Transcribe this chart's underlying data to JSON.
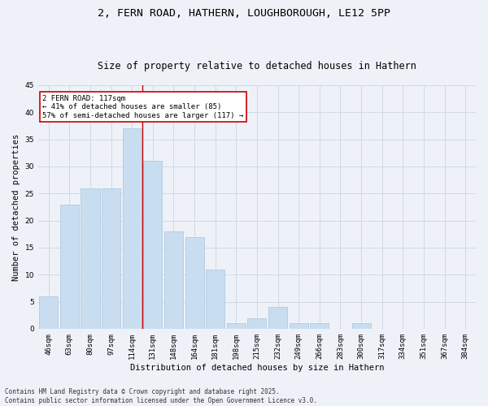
{
  "title1": "2, FERN ROAD, HATHERN, LOUGHBOROUGH, LE12 5PP",
  "title2": "Size of property relative to detached houses in Hathern",
  "xlabel": "Distribution of detached houses by size in Hathern",
  "ylabel": "Number of detached properties",
  "categories": [
    "46sqm",
    "63sqm",
    "80sqm",
    "97sqm",
    "114sqm",
    "131sqm",
    "148sqm",
    "164sqm",
    "181sqm",
    "198sqm",
    "215sqm",
    "232sqm",
    "249sqm",
    "266sqm",
    "283sqm",
    "300sqm",
    "317sqm",
    "334sqm",
    "351sqm",
    "367sqm",
    "384sqm"
  ],
  "values": [
    6,
    23,
    26,
    26,
    37,
    31,
    18,
    17,
    11,
    1,
    2,
    4,
    1,
    1,
    0,
    1,
    0,
    0,
    0,
    0,
    0
  ],
  "bar_color": "#c9ddf0",
  "bar_edge_color": "#aac4d8",
  "grid_color": "#d0d8e8",
  "background_color": "#eef2f8",
  "red_line_index": 4,
  "annotation_text": "2 FERN ROAD: 117sqm\n← 41% of detached houses are smaller (85)\n57% of semi-detached houses are larger (117) →",
  "annotation_box_color": "#ffffff",
  "annotation_box_edge": "#cc0000",
  "ylim": [
    0,
    45
  ],
  "yticks": [
    0,
    5,
    10,
    15,
    20,
    25,
    30,
    35,
    40,
    45
  ],
  "footnote": "Contains HM Land Registry data © Crown copyright and database right 2025.\nContains public sector information licensed under the Open Government Licence v3.0.",
  "title1_fontsize": 9.5,
  "title2_fontsize": 8.5,
  "axis_label_fontsize": 7.5,
  "tick_fontsize": 6.5,
  "annot_fontsize": 6.5,
  "footnote_fontsize": 5.5
}
